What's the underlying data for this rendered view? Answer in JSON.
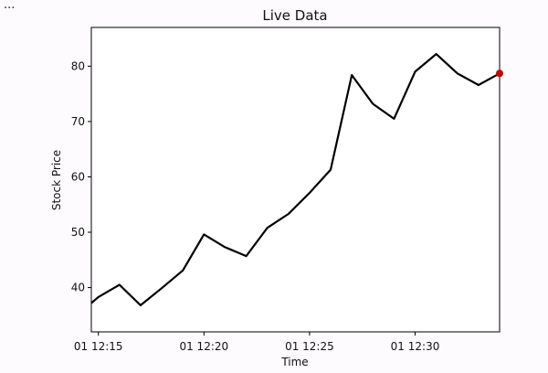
{
  "ellipsis": "...",
  "chart_data": {
    "type": "line",
    "title": "Live Data",
    "xlabel": "Time",
    "ylabel": "Stock Price",
    "x": [
      "12:14:40",
      "12:15:00",
      "12:16:00",
      "12:17:00",
      "12:18:00",
      "12:19:00",
      "12:20:00",
      "12:21:00",
      "12:22:00",
      "12:23:00",
      "12:24:00",
      "12:25:00",
      "12:26:00",
      "12:27:00",
      "12:28:00",
      "12:29:00",
      "12:30:00",
      "12:31:00",
      "12:32:00",
      "12:33:00",
      "12:34:00"
    ],
    "series": [
      {
        "values": [
          37.2,
          38.3,
          40.5,
          36.8,
          39.9,
          43.1,
          49.6,
          47.3,
          45.7,
          50.8,
          53.3,
          57.1,
          61.3,
          78.4,
          73.2,
          70.5,
          79.0,
          82.2,
          78.7,
          76.6,
          78.7
        ],
        "color": "#000000"
      }
    ],
    "latest_point": {
      "x": "12:34:00",
      "y": 78.7,
      "color": "#cc0000"
    },
    "xticks": [
      {
        "label": "01 12:15",
        "x": "12:15:00"
      },
      {
        "label": "01 12:20",
        "x": "12:20:00"
      },
      {
        "label": "01 12:25",
        "x": "12:25:00"
      },
      {
        "label": "01 12:30",
        "x": "12:30:00"
      }
    ],
    "yticks": [
      40,
      50,
      60,
      70,
      80
    ],
    "xlim": [
      "12:14:40",
      "12:34:00"
    ],
    "ylim": [
      32,
      87
    ],
    "grid": false
  }
}
